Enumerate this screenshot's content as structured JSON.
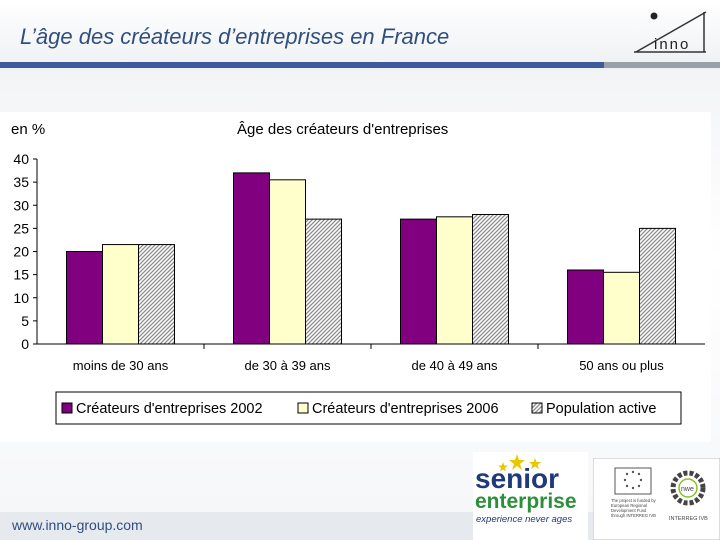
{
  "header": {
    "title": "L’âge des créateurs d’entreprises en France",
    "logo_text": "inno"
  },
  "footer": {
    "url": "www.inno-group.com",
    "senior_line1": "senior",
    "senior_line2": "enterprise",
    "senior_tagline": "experience never ages",
    "partner_label": "INTERREG IVB",
    "eu_text": "The project is funded by European Regional Development Fund through INTERREG IVB"
  },
  "colors": {
    "accent_blue": "#3d5a9a",
    "series1": "#800080",
    "series2": "#ffffcc",
    "series3_hatch": "#999999"
  },
  "chart_data": {
    "type": "bar",
    "title": "Âge des créateurs d'entreprises",
    "ylabel": "en %",
    "xlabel": "",
    "ylim": [
      0,
      40
    ],
    "yticks": [
      0,
      5,
      10,
      15,
      20,
      25,
      30,
      35,
      40
    ],
    "categories": [
      "moins de 30 ans",
      "de 30 à 39 ans",
      "de 40 à 49 ans",
      "50 ans ou plus"
    ],
    "series": [
      {
        "name": "Créateurs d'entreprises 2002",
        "values": [
          20,
          37,
          27,
          16
        ],
        "color": "#800080"
      },
      {
        "name": "Créateurs d'entreprises 2006",
        "values": [
          21.5,
          35.5,
          27.5,
          15.5
        ],
        "color": "#ffffcc"
      },
      {
        "name": "Population active",
        "values": [
          21.5,
          27,
          28,
          25
        ],
        "color": "hatch"
      }
    ],
    "grid": false,
    "legend_position": "bottom"
  }
}
